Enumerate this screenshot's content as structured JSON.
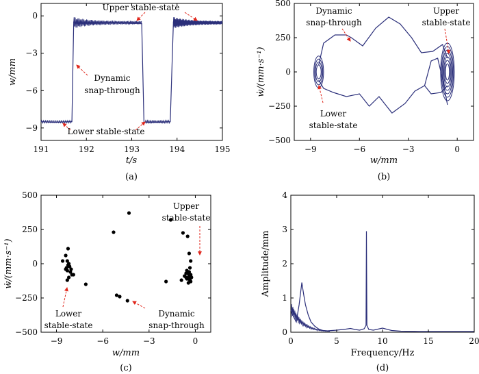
{
  "panels": [
    {
      "id": "a",
      "caption": "(a)",
      "xlabel": "t/s",
      "ylabel": "w/mm",
      "xticks": [
        "191",
        "192",
        "193",
        "194",
        "195"
      ],
      "yticks": [
        "0",
        "−3",
        "−6",
        "−9"
      ],
      "annotations": [
        "Upper stable-state",
        "Dynamic",
        "snap-through",
        "Lower stable-state"
      ]
    },
    {
      "id": "b",
      "caption": "(b)",
      "xlabel": "w/mm",
      "ylabel": "ẇ/(mm·s⁻¹)",
      "xticks": [
        "−9",
        "−6",
        "−3",
        "0"
      ],
      "yticks": [
        "500",
        "250",
        "0",
        "−250",
        "−500"
      ],
      "annotations": [
        "Dynamic",
        "snap-through",
        "Upper",
        "stable-state",
        "Lower",
        "stable-state"
      ]
    },
    {
      "id": "c",
      "caption": "(c)",
      "xlabel": "w/mm",
      "ylabel": "ẇ/(mm·s⁻¹)",
      "xticks": [
        "−9",
        "−6",
        "−3",
        "0"
      ],
      "yticks": [
        "500",
        "250",
        "0",
        "−250",
        "−500"
      ],
      "annotations": [
        "Upper",
        "stable-state",
        "Lower",
        "stable-state",
        "Dynamic",
        "snap-through"
      ]
    },
    {
      "id": "d",
      "caption": "(d)",
      "xlabel": "Frequency/Hz",
      "ylabel": "Amplitude/mm",
      "xticks": [
        "0",
        "5",
        "10",
        "15",
        "20"
      ],
      "yticks": [
        "4",
        "3",
        "2",
        "1",
        "0"
      ],
      "annotations": []
    }
  ],
  "chart_data": [
    {
      "type": "line",
      "panel": "a",
      "xlim": [
        191,
        195
      ],
      "ylim": [
        -10,
        1
      ],
      "series": [
        {
          "color": "#2b2f7a",
          "x": [
            191.0,
            191.3,
            191.6,
            191.68,
            191.72,
            191.8,
            192.2,
            192.6,
            193.0,
            193.22,
            193.27,
            193.32,
            193.6,
            193.85,
            193.92,
            193.98,
            194.4,
            194.8,
            195.0
          ],
          "y": [
            -8.5,
            -8.55,
            -8.5,
            -8.5,
            -0.5,
            -0.6,
            -0.6,
            -0.55,
            -0.6,
            -0.6,
            -8.6,
            -8.55,
            -8.55,
            -8.5,
            -0.5,
            -0.6,
            -0.6,
            -0.55,
            -0.6
          ]
        }
      ]
    },
    {
      "type": "line",
      "panel": "b",
      "xlim": [
        -10,
        1
      ],
      "ylim": [
        -500,
        500
      ],
      "series": [
        {
          "color": "#2b2f7a",
          "x": [
            -8.5,
            -8.2,
            -7.5,
            -6.8,
            -6.5,
            -5.8,
            -5.0,
            -4.2,
            -3.5,
            -2.8,
            -2.2,
            -1.5,
            -0.9,
            -0.6
          ],
          "y": [
            50,
            210,
            270,
            270,
            250,
            190,
            320,
            400,
            350,
            250,
            140,
            150,
            200,
            100
          ]
        },
        {
          "color": "#2b2f7a",
          "x": [
            -0.6,
            -1.0,
            -1.6,
            -2.0,
            -2.6,
            -3.2,
            -4.0,
            -4.8,
            -5.4,
            -6.0,
            -6.8,
            -7.6,
            -8.2,
            -8.5
          ],
          "y": [
            -100,
            -150,
            -160,
            -100,
            -140,
            -230,
            -300,
            -180,
            -250,
            -160,
            -180,
            -150,
            -120,
            -60
          ]
        },
        {
          "color": "#2b2f7a",
          "x": [
            -2.0,
            -1.6,
            -1.2,
            -0.9,
            -0.6
          ],
          "y": [
            -100,
            80,
            100,
            -50,
            -240
          ]
        }
      ]
    },
    {
      "type": "scatter",
      "panel": "c",
      "xlim": [
        -10,
        1
      ],
      "ylim": [
        -500,
        500
      ],
      "series": [
        {
          "color": "#000000",
          "x": [
            -8.4,
            -8.3,
            -8.25,
            -8.2,
            -8.15,
            -8.35,
            -8.3,
            -8.1,
            -8.0,
            -8.2,
            -8.3,
            -8.4,
            -8.25,
            -8.05,
            -7.9,
            -8.6,
            -7.1,
            -5.3,
            -4.3,
            -4.9,
            -5.1,
            -4.4,
            -1.6,
            -0.8,
            -0.5,
            -0.4,
            -0.3,
            -0.35,
            -0.45,
            -0.5,
            -0.3,
            -0.4,
            -0.6,
            -0.25,
            -0.5,
            -0.35,
            -0.7,
            -0.4,
            -0.55,
            -0.3,
            -0.45,
            -0.6,
            -1.9,
            -0.9,
            -0.55,
            -0.4,
            -0.3
          ],
          "y": [
            60,
            20,
            110,
            0,
            -20,
            -30,
            -50,
            -60,
            -80,
            -100,
            -120,
            -40,
            -10,
            -40,
            -80,
            20,
            -150,
            230,
            370,
            -240,
            -230,
            -270,
            320,
            225,
            200,
            75,
            20,
            -30,
            -60,
            -70,
            -80,
            -90,
            -100,
            -100,
            -110,
            -120,
            -90,
            -60,
            -50,
            -130,
            -140,
            -70,
            -130,
            -120,
            -110,
            -100,
            -90
          ]
        }
      ]
    },
    {
      "type": "line",
      "panel": "d",
      "xlim": [
        0,
        20
      ],
      "ylim": [
        0,
        4
      ],
      "series": [
        {
          "color": "#2b2f7a",
          "x": [
            0,
            0.3,
            0.6,
            0.9,
            1.2,
            1.4,
            1.6,
            1.9,
            2.2,
            2.6,
            3.0,
            3.5,
            4.0,
            5.0,
            6.0,
            6.5,
            7.0,
            7.5,
            8.0,
            8.2,
            8.25,
            8.3,
            8.5,
            9.0,
            10.0,
            11.0,
            12.0,
            14.0,
            16.0,
            18.0,
            20.0
          ],
          "y": [
            0.65,
            0.45,
            0.3,
            0.8,
            1.45,
            1.1,
            0.8,
            0.5,
            0.3,
            0.18,
            0.1,
            0.05,
            0.04,
            0.06,
            0.09,
            0.11,
            0.08,
            0.06,
            0.1,
            0.2,
            2.95,
            0.2,
            0.08,
            0.06,
            0.12,
            0.05,
            0.03,
            0.02,
            0.02,
            0.02,
            0.02
          ]
        }
      ]
    }
  ]
}
